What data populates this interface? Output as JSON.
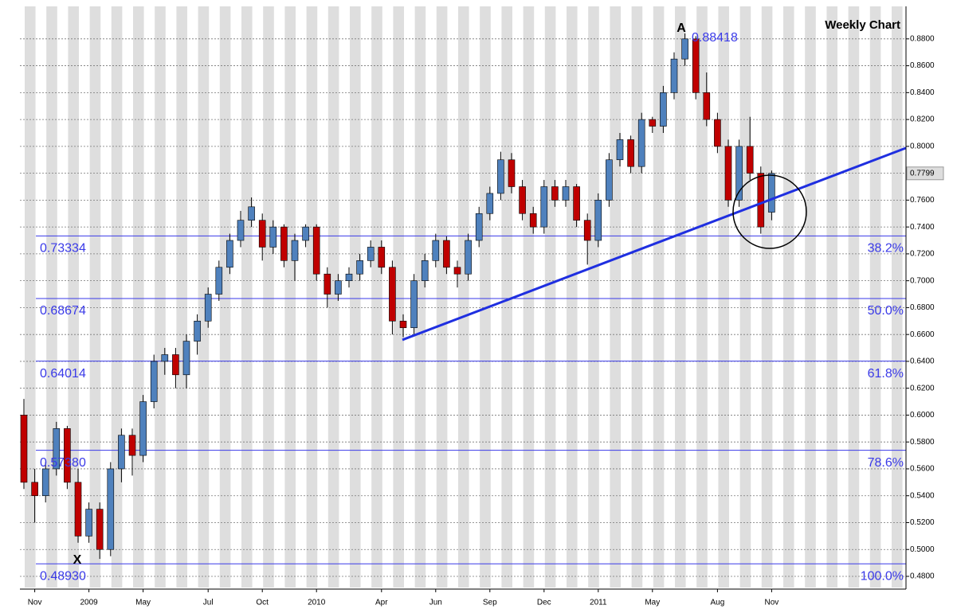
{
  "chart_data": {
    "type": "candlestick",
    "title": "Weekly Chart",
    "categories": [
      null,
      "Nov",
      null,
      null,
      null,
      null,
      "2009",
      null,
      null,
      null,
      null,
      "May",
      null,
      null,
      null,
      null,
      null,
      "Jul",
      null,
      null,
      null,
      null,
      "Oct",
      null,
      null,
      null,
      null,
      "2010",
      null,
      null,
      null,
      null,
      null,
      "Apr",
      null,
      null,
      null,
      null,
      "Jun",
      null,
      null,
      null,
      null,
      "Sep",
      null,
      null,
      null,
      null,
      "Dec",
      null,
      null,
      null,
      null,
      "2011",
      null,
      null,
      null,
      null,
      "May",
      null,
      null,
      null,
      null,
      null,
      "Aug",
      null,
      null,
      null,
      null,
      "Nov"
    ],
    "series": [
      {
        "up_color": "#4f81bd",
        "down_color": "#c00000",
        "open": [
          0.6,
          0.55,
          0.54,
          0.56,
          0.59,
          0.55,
          0.51,
          0.53,
          0.5,
          0.56,
          0.585,
          0.57,
          0.61,
          0.64,
          0.645,
          0.63,
          0.655,
          0.67,
          0.69,
          0.71,
          0.73,
          0.745,
          0.745,
          0.725,
          0.74,
          0.715,
          0.73,
          0.74,
          0.705,
          0.69,
          0.7,
          0.705,
          0.715,
          0.725,
          0.71,
          0.67,
          0.665,
          0.7,
          0.715,
          0.73,
          0.71,
          0.705,
          0.73,
          0.75,
          0.765,
          0.79,
          0.77,
          0.75,
          0.74,
          0.77,
          0.76,
          0.77,
          0.745,
          0.73,
          0.76,
          0.79,
          0.805,
          0.785,
          0.82,
          0.815,
          0.84,
          0.865,
          0.88,
          0.84,
          0.82,
          0.8,
          0.76,
          0.8,
          0.78,
          0.751
        ],
        "high": [
          0.612,
          0.56,
          0.565,
          0.595,
          0.592,
          0.56,
          0.535,
          0.535,
          0.565,
          0.59,
          0.59,
          0.615,
          0.645,
          0.65,
          0.65,
          0.66,
          0.675,
          0.695,
          0.715,
          0.735,
          0.752,
          0.762,
          0.75,
          0.745,
          0.742,
          0.735,
          0.742,
          0.742,
          0.71,
          0.705,
          0.71,
          0.72,
          0.73,
          0.73,
          0.715,
          0.675,
          0.705,
          0.72,
          0.735,
          0.733,
          0.715,
          0.735,
          0.755,
          0.77,
          0.796,
          0.795,
          0.775,
          0.755,
          0.775,
          0.775,
          0.775,
          0.772,
          0.75,
          0.765,
          0.795,
          0.81,
          0.808,
          0.825,
          0.822,
          0.845,
          0.87,
          0.884,
          0.882,
          0.855,
          0.825,
          0.805,
          0.805,
          0.822,
          0.785,
          0.782
        ],
        "low": [
          0.545,
          0.52,
          0.535,
          0.555,
          0.545,
          0.505,
          0.505,
          0.493,
          0.495,
          0.55,
          0.555,
          0.565,
          0.605,
          0.63,
          0.62,
          0.62,
          0.645,
          0.665,
          0.685,
          0.705,
          0.725,
          0.74,
          0.715,
          0.72,
          0.71,
          0.7,
          0.725,
          0.7,
          0.68,
          0.685,
          0.695,
          0.7,
          0.71,
          0.705,
          0.66,
          0.658,
          0.66,
          0.695,
          0.71,
          0.705,
          0.695,
          0.7,
          0.725,
          0.745,
          0.76,
          0.765,
          0.745,
          0.735,
          0.735,
          0.755,
          0.755,
          0.74,
          0.712,
          0.725,
          0.755,
          0.785,
          0.78,
          0.78,
          0.81,
          0.81,
          0.835,
          0.86,
          0.835,
          0.815,
          0.795,
          0.755,
          0.755,
          0.775,
          0.735,
          0.745
        ],
        "close": [
          0.55,
          0.54,
          0.56,
          0.59,
          0.55,
          0.51,
          0.53,
          0.5,
          0.56,
          0.585,
          0.57,
          0.61,
          0.64,
          0.645,
          0.63,
          0.655,
          0.67,
          0.69,
          0.71,
          0.73,
          0.745,
          0.755,
          0.725,
          0.74,
          0.715,
          0.73,
          0.74,
          0.705,
          0.69,
          0.7,
          0.705,
          0.715,
          0.725,
          0.71,
          0.67,
          0.665,
          0.7,
          0.715,
          0.73,
          0.71,
          0.705,
          0.73,
          0.75,
          0.765,
          0.79,
          0.77,
          0.75,
          0.74,
          0.77,
          0.76,
          0.77,
          0.745,
          0.73,
          0.76,
          0.79,
          0.805,
          0.785,
          0.82,
          0.815,
          0.84,
          0.865,
          0.88,
          0.84,
          0.82,
          0.8,
          0.76,
          0.8,
          0.78,
          0.74,
          0.7799
        ]
      }
    ],
    "ylim": [
      0.4717,
      0.903
    ],
    "yticks": [
      {
        "value": 0.48,
        "label": "0.4800"
      },
      {
        "value": 0.5,
        "label": "0.5000"
      },
      {
        "value": 0.52,
        "label": "0.5200"
      },
      {
        "value": 0.54,
        "label": "0.5400"
      },
      {
        "value": 0.56,
        "label": "0.5600"
      },
      {
        "value": 0.58,
        "label": "0.5800"
      },
      {
        "value": 0.6,
        "label": "0.6000"
      },
      {
        "value": 0.62,
        "label": "0.6200"
      },
      {
        "value": 0.64,
        "label": "0.6400"
      },
      {
        "value": 0.66,
        "label": "0.6600"
      },
      {
        "value": 0.68,
        "label": "0.6800"
      },
      {
        "value": 0.7,
        "label": "0.7000"
      },
      {
        "value": 0.72,
        "label": "0.7200"
      },
      {
        "value": 0.74,
        "label": "0.7400"
      },
      {
        "value": 0.76,
        "label": "0.7600"
      },
      {
        "value": 0.78,
        "label": "0.7800"
      },
      {
        "value": 0.8,
        "label": "0.8000"
      },
      {
        "value": 0.82,
        "label": "0.8200"
      },
      {
        "value": 0.84,
        "label": "0.8400"
      },
      {
        "value": 0.86,
        "label": "0.8600"
      },
      {
        "value": 0.88,
        "label": "0.8800"
      }
    ],
    "grid": true,
    "fib_levels": {
      "values": [
        0.73334,
        0.68674,
        0.64014,
        0.5738,
        0.4893
      ],
      "value_labels": [
        "0.73334",
        "0.68674",
        "0.64014",
        "0.57380",
        "0.48930"
      ],
      "percent_labels": [
        "38.2%",
        "50.0%",
        "61.8%",
        "78.6%",
        "100.0%"
      ],
      "color": "#3a3ae8"
    },
    "trendline": {
      "values": [
        0.656,
        0.7988
      ],
      "color": "#1f2fe0"
    },
    "annotations": {
      "peak": "A",
      "trough": "X",
      "peak_value": 0.88418
    }
  }
}
